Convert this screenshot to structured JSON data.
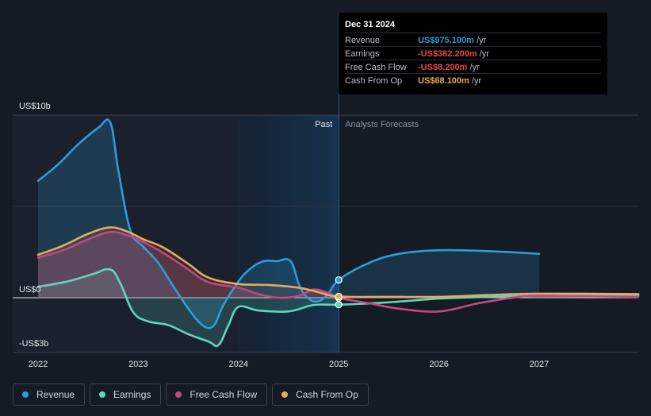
{
  "tooltip": {
    "date": "Dec 31 2024",
    "rows": [
      {
        "label": "Revenue",
        "value": "US$975.100m",
        "unit": "/yr",
        "color": "#2d9cdb"
      },
      {
        "label": "Earnings",
        "value": "-US$382.200m",
        "unit": "/yr",
        "color": "#e84545"
      },
      {
        "label": "Free Cash Flow",
        "value": "-US$8.200m",
        "unit": "/yr",
        "color": "#e84545"
      },
      {
        "label": "Cash From Op",
        "value": "US$68.100m",
        "unit": "/yr",
        "color": "#e8a95a"
      }
    ]
  },
  "chart_data": {
    "type": "area",
    "region_labels": {
      "past": "Past",
      "forecast": "Analysts Forecasts"
    },
    "y_tick_labels": [
      {
        "value": 10,
        "label": "US$10b"
      },
      {
        "value": 0,
        "label": "US$0"
      },
      {
        "value": -2.5,
        "label": "-US$3b"
      }
    ],
    "x_tick_labels": [
      {
        "value": 2022,
        "label": "2022"
      },
      {
        "value": 2023,
        "label": "2023"
      },
      {
        "value": 2024,
        "label": "2024"
      },
      {
        "value": 2025,
        "label": "2025"
      },
      {
        "value": 2026,
        "label": "2026"
      },
      {
        "value": 2027,
        "label": "2027"
      }
    ],
    "xlim": [
      2021.75,
      2027.99
    ],
    "ylim": [
      -3.0,
      10.0
    ],
    "highlight_range": [
      2024.0,
      2025.0
    ],
    "divider_x": 2025.0,
    "grid": true,
    "series": [
      {
        "name": "Revenue",
        "color": "#2d9cdb",
        "points": [
          [
            2022.0,
            6.4
          ],
          [
            2022.2,
            7.3
          ],
          [
            2022.4,
            8.4
          ],
          [
            2022.6,
            9.3
          ],
          [
            2022.72,
            9.6
          ],
          [
            2022.8,
            7.0
          ],
          [
            2022.92,
            3.7
          ],
          [
            2023.05,
            2.8
          ],
          [
            2023.2,
            1.9
          ],
          [
            2023.4,
            0.2
          ],
          [
            2023.6,
            -1.3
          ],
          [
            2023.74,
            -1.6
          ],
          [
            2023.85,
            -0.4
          ],
          [
            2024.0,
            0.9
          ],
          [
            2024.12,
            1.6
          ],
          [
            2024.25,
            2.0
          ],
          [
            2024.38,
            2.0
          ],
          [
            2024.52,
            2.0
          ],
          [
            2024.62,
            0.5
          ],
          [
            2024.75,
            -0.2
          ],
          [
            2024.88,
            0.1
          ],
          [
            2025.0,
            0.975
          ],
          [
            2025.3,
            1.9
          ],
          [
            2025.6,
            2.4
          ],
          [
            2026.0,
            2.6
          ],
          [
            2026.5,
            2.55
          ],
          [
            2027.0,
            2.4
          ]
        ]
      },
      {
        "name": "Earnings",
        "color": "#5ed6bd",
        "points": [
          [
            2022.0,
            0.6
          ],
          [
            2022.3,
            0.9
          ],
          [
            2022.55,
            1.3
          ],
          [
            2022.72,
            1.55
          ],
          [
            2022.82,
            0.8
          ],
          [
            2022.95,
            -0.8
          ],
          [
            2023.1,
            -1.3
          ],
          [
            2023.3,
            -1.5
          ],
          [
            2023.5,
            -2.0
          ],
          [
            2023.7,
            -2.4
          ],
          [
            2023.8,
            -2.6
          ],
          [
            2023.9,
            -1.5
          ],
          [
            2024.0,
            -0.5
          ],
          [
            2024.2,
            -0.7
          ],
          [
            2024.5,
            -0.75
          ],
          [
            2024.75,
            -0.4
          ],
          [
            2025.0,
            -0.382
          ],
          [
            2025.5,
            -0.25
          ],
          [
            2026.0,
            -0.05
          ],
          [
            2026.5,
            0.05
          ],
          [
            2027.0,
            0.1
          ],
          [
            2027.99,
            0.15
          ]
        ]
      },
      {
        "name": "Free Cash Flow",
        "color": "#c2487f",
        "points": [
          [
            2022.0,
            2.2
          ],
          [
            2022.25,
            2.6
          ],
          [
            2022.5,
            3.2
          ],
          [
            2022.72,
            3.6
          ],
          [
            2022.9,
            3.4
          ],
          [
            2023.05,
            3.05
          ],
          [
            2023.25,
            2.45
          ],
          [
            2023.5,
            1.55
          ],
          [
            2023.7,
            0.85
          ],
          [
            2024.0,
            0.55
          ],
          [
            2024.2,
            0.2
          ],
          [
            2024.4,
            0.0
          ],
          [
            2024.6,
            0.1
          ],
          [
            2024.75,
            0.45
          ],
          [
            2024.9,
            0.25
          ],
          [
            2025.0,
            -0.008
          ],
          [
            2025.3,
            -0.3
          ],
          [
            2025.6,
            -0.6
          ],
          [
            2026.0,
            -0.75
          ],
          [
            2026.4,
            -0.3
          ],
          [
            2026.8,
            0.05
          ],
          [
            2027.0,
            0.1
          ],
          [
            2027.99,
            0.05
          ]
        ]
      },
      {
        "name": "Cash From Op",
        "color": "#e8a95a",
        "points": [
          [
            2022.0,
            2.35
          ],
          [
            2022.25,
            2.85
          ],
          [
            2022.5,
            3.5
          ],
          [
            2022.72,
            3.85
          ],
          [
            2022.9,
            3.6
          ],
          [
            2023.05,
            3.2
          ],
          [
            2023.25,
            2.75
          ],
          [
            2023.5,
            1.85
          ],
          [
            2023.7,
            1.1
          ],
          [
            2024.0,
            0.75
          ],
          [
            2024.3,
            0.7
          ],
          [
            2024.6,
            0.55
          ],
          [
            2024.8,
            0.3
          ],
          [
            2025.0,
            0.068
          ],
          [
            2025.5,
            0.05
          ],
          [
            2026.0,
            0.05
          ],
          [
            2026.5,
            0.15
          ],
          [
            2027.0,
            0.22
          ],
          [
            2027.99,
            0.2
          ]
        ]
      }
    ]
  },
  "legend": [
    {
      "label": "Revenue",
      "color": "#2d9cdb"
    },
    {
      "label": "Earnings",
      "color": "#5ed6bd"
    },
    {
      "label": "Free Cash Flow",
      "color": "#c2487f"
    },
    {
      "label": "Cash From Op",
      "color": "#e8a95a"
    }
  ]
}
